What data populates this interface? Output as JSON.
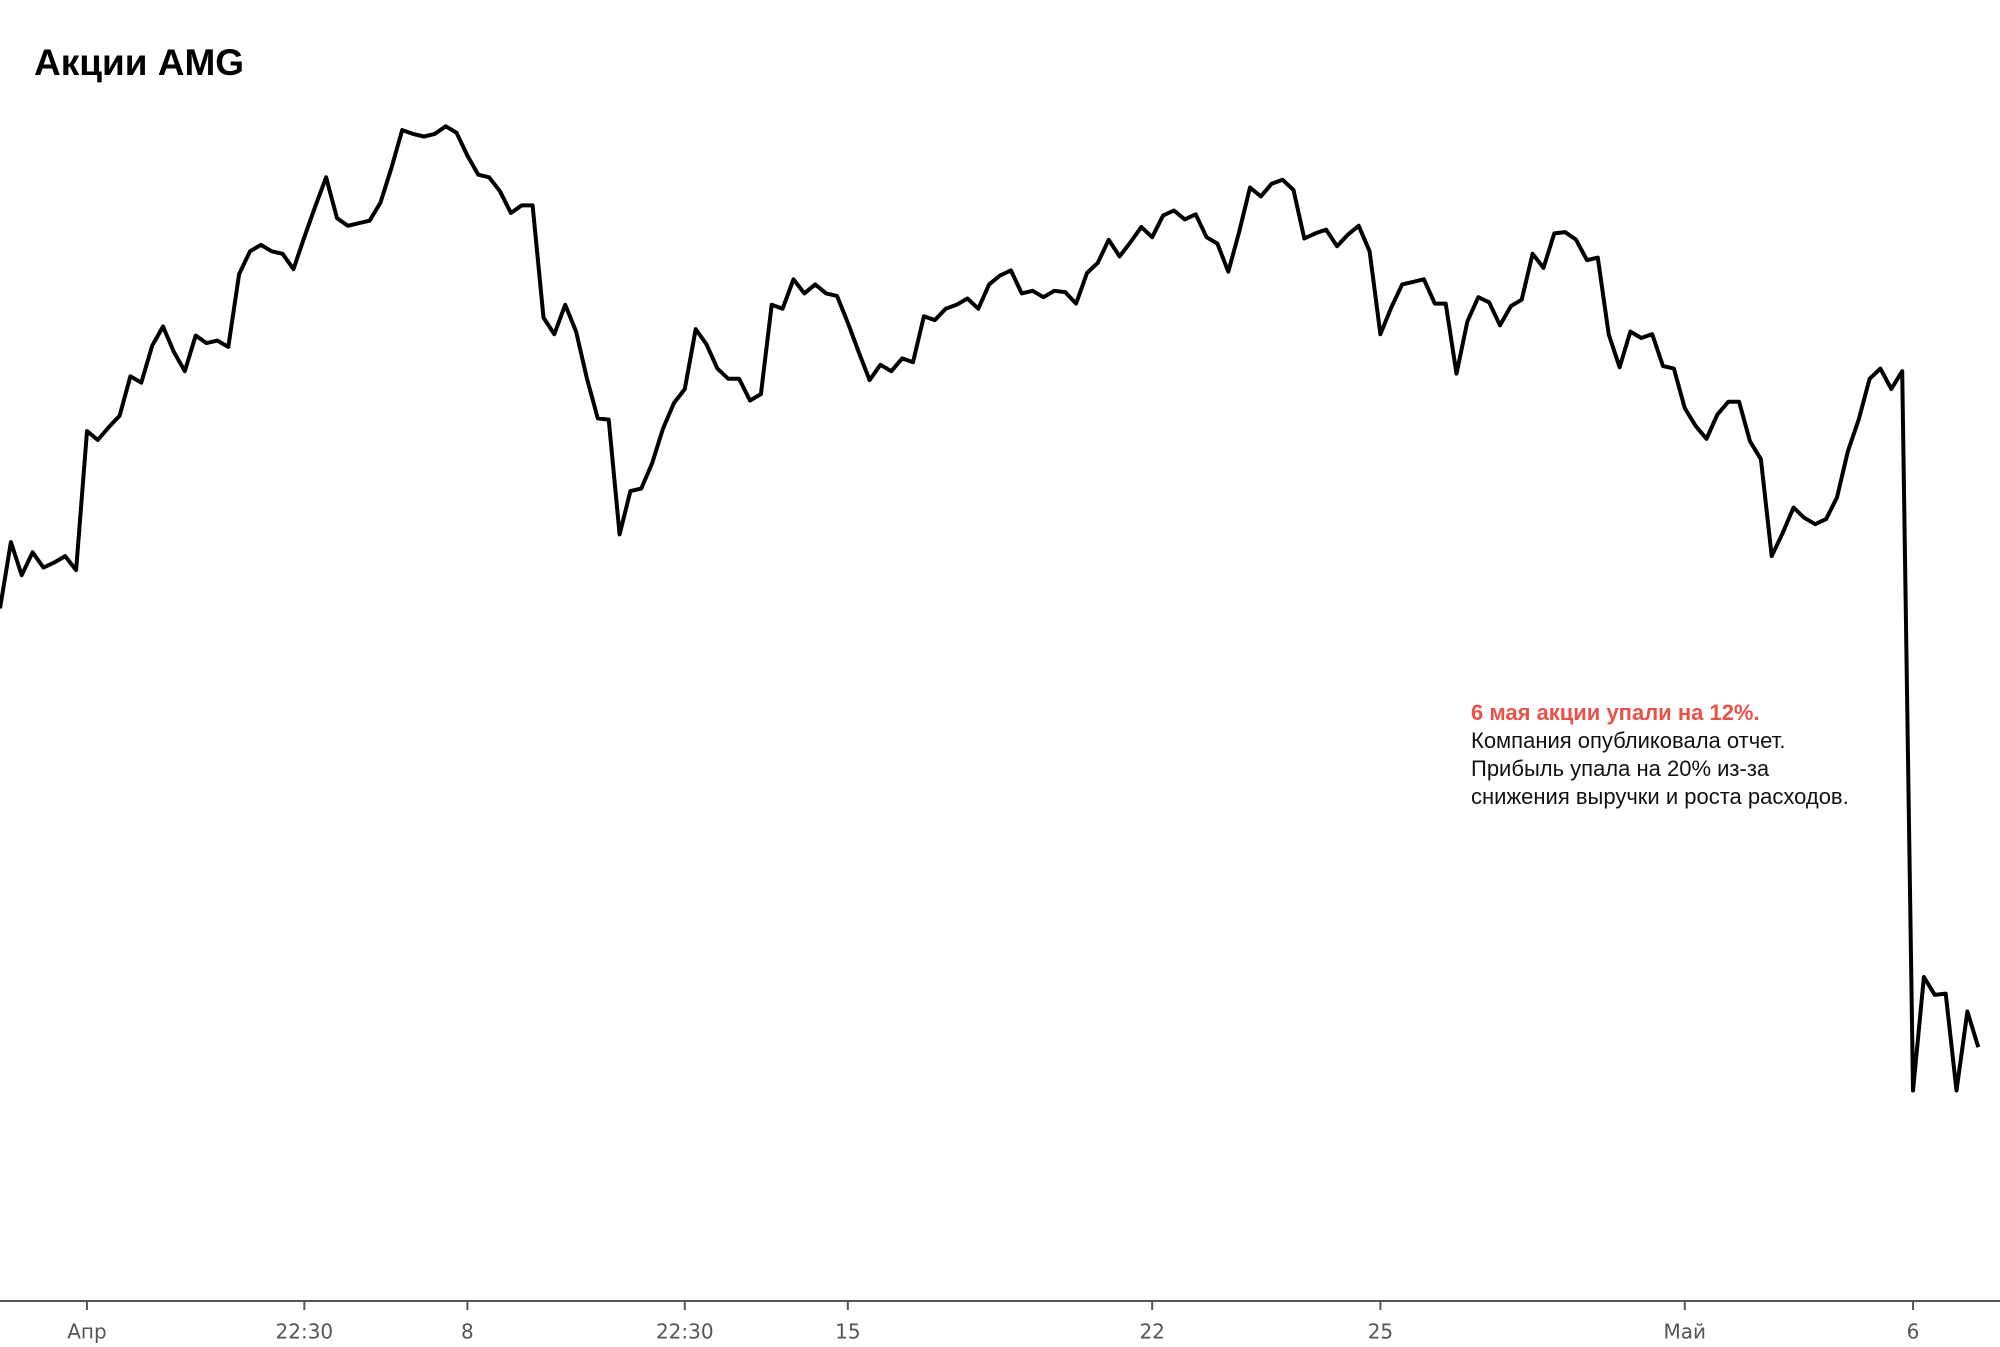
{
  "chart_data": {
    "type": "line",
    "title": "Акции AMG",
    "color": "#000000",
    "values": [
      54.3,
      59.5,
      56.9,
      58.7,
      57.5,
      57.9,
      58.4,
      57.3,
      68.2,
      67.5,
      68.5,
      69.4,
      72.5,
      72,
      74.9,
      76.4,
      74.4,
      72.9,
      75.7,
      75.1,
      75.3,
      74.8,
      80.5,
      82.3,
      82.8,
      82.3,
      82.1,
      80.9,
      83.4,
      85.8,
      88.1,
      84.9,
      84.3,
      84.5,
      84.7,
      86.1,
      88.8,
      91.8,
      91.5,
      91.3,
      91.5,
      92.1,
      91.6,
      89.8,
      88.3,
      88.1,
      87,
      85.3,
      85.9,
      85.9,
      77.1,
      75.8,
      78.1,
      76,
      72.3,
      69.2,
      69.1,
      60.1,
      63.5,
      63.7,
      65.7,
      68.4,
      70.4,
      71.5,
      76.2,
      75,
      73.1,
      72.3,
      72.3,
      70.6,
      71.1,
      78.1,
      77.8,
      80.1,
      79,
      79.7,
      79,
      78.8,
      76.7,
      74.4,
      72.2,
      73.4,
      72.9,
      73.9,
      73.6,
      77.2,
      76.9,
      77.8,
      78.1,
      78.6,
      77.8,
      79.7,
      80.4,
      80.8,
      79,
      79.2,
      78.7,
      79.2,
      79.1,
      78.2,
      80.6,
      81.4,
      83.2,
      81.9,
      83,
      84.2,
      83.4,
      85.1,
      85.5,
      84.8,
      85.2,
      83.4,
      82.9,
      80.7,
      83.8,
      87.3,
      86.6,
      87.6,
      87.9,
      87.1,
      83.3,
      83.7,
      84,
      82.7,
      83.6,
      84.3,
      82.3,
      75.8,
      77.9,
      79.7,
      79.9,
      80.1,
      78.2,
      78.2,
      72.7,
      76.8,
      78.7,
      78.3,
      76.5,
      78,
      78.5,
      82.1,
      81,
      83.7,
      83.8,
      83.2,
      81.6,
      81.8,
      75.8,
      73.2,
      76,
      75.5,
      75.8,
      73.3,
      73.1,
      70,
      68.6,
      67.6,
      69.5,
      70.5,
      70.5,
      67.4,
      66,
      58.4,
      60.2,
      62.2,
      61.4,
      60.9,
      61.3,
      63,
      66.6,
      69.1,
      72.3,
      73.1,
      71.5,
      72.9,
      16.5,
      25.4,
      24,
      24.1,
      16.5,
      22.7,
      19.9
    ],
    "xlim": [
      0,
      184
    ],
    "ylim": [
      0,
      102
    ],
    "xticks": [
      {
        "value": 8,
        "label": "Апр"
      },
      {
        "value": 28,
        "label": "22:30"
      },
      {
        "value": 43,
        "label": "8"
      },
      {
        "value": 63,
        "label": "22:30"
      },
      {
        "value": 78,
        "label": "15"
      },
      {
        "value": 106,
        "label": "22"
      },
      {
        "value": 127,
        "label": "25"
      },
      {
        "value": 155,
        "label": "Май"
      },
      {
        "value": 176,
        "label": "6"
      }
    ],
    "annotation": {
      "title": "6 мая акции упали на 12%.",
      "title_color": "#e8524a",
      "lines": [
        "Компания опубликовала отчет.",
        "Прибыль упала на 20% из-за",
        "снижения выручки и роста расходов."
      ]
    }
  }
}
